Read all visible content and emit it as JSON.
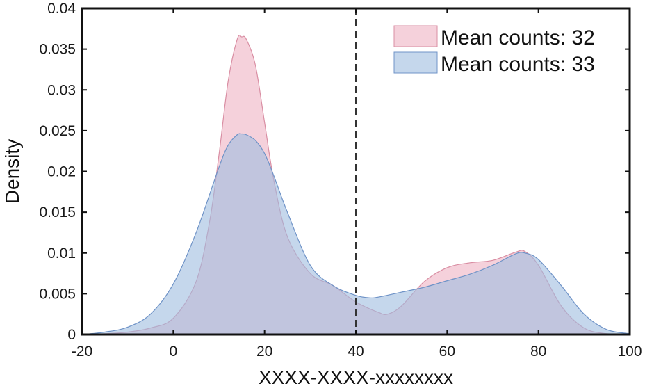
{
  "chart_data": {
    "type": "area",
    "xlabel": "XXXX-XXXX-xxxxxxxx",
    "ylabel": "Density",
    "xlim": [
      -20,
      100
    ],
    "ylim": [
      0,
      0.04
    ],
    "xticks": [
      "-20",
      "0",
      "20",
      "40",
      "60",
      "80",
      "100"
    ],
    "yticks": [
      "0",
      "0.005",
      "0.01",
      "0.015",
      "0.02",
      "0.025",
      "0.03",
      "0.035",
      "0.04"
    ],
    "grid": false,
    "legend_position": "top-right",
    "reference_line": {
      "x": 40,
      "style": "dashed"
    },
    "series": [
      {
        "name": "Mean counts: 32",
        "fill": "#eeb3c3",
        "stroke": "#d98ea3",
        "x": [
          -20,
          -15,
          -10,
          -5,
          0,
          5,
          8,
          10,
          12,
          14,
          15,
          16,
          18,
          20,
          22,
          25,
          30,
          35,
          40,
          45,
          47,
          50,
          55,
          60,
          65,
          70,
          75,
          77,
          80,
          85,
          90,
          95,
          100
        ],
        "y": [
          0,
          0.0001,
          0.0003,
          0.0008,
          0.002,
          0.0065,
          0.014,
          0.022,
          0.031,
          0.0362,
          0.0365,
          0.0362,
          0.033,
          0.026,
          0.019,
          0.012,
          0.0075,
          0.006,
          0.004,
          0.0027,
          0.0025,
          0.0035,
          0.0065,
          0.0082,
          0.0088,
          0.0091,
          0.0101,
          0.0102,
          0.0085,
          0.0035,
          0.0008,
          0.0001,
          0
        ]
      },
      {
        "name": "Mean counts: 33",
        "fill": "#9fbde0",
        "stroke": "#6f93c7",
        "x": [
          -20,
          -15,
          -10,
          -5,
          0,
          5,
          10,
          12,
          14,
          15,
          16,
          18,
          20,
          22,
          25,
          30,
          35,
          40,
          43,
          45,
          50,
          55,
          60,
          65,
          70,
          75,
          77,
          80,
          85,
          90,
          95,
          100
        ],
        "y": [
          0,
          0.0003,
          0.0009,
          0.0025,
          0.0062,
          0.0125,
          0.0205,
          0.0232,
          0.0245,
          0.0246,
          0.0245,
          0.0238,
          0.0222,
          0.0195,
          0.015,
          0.0085,
          0.006,
          0.0048,
          0.0045,
          0.0046,
          0.0052,
          0.0058,
          0.0066,
          0.0074,
          0.0085,
          0.0099,
          0.01,
          0.0092,
          0.006,
          0.0025,
          0.0006,
          0.0001
        ]
      }
    ]
  }
}
